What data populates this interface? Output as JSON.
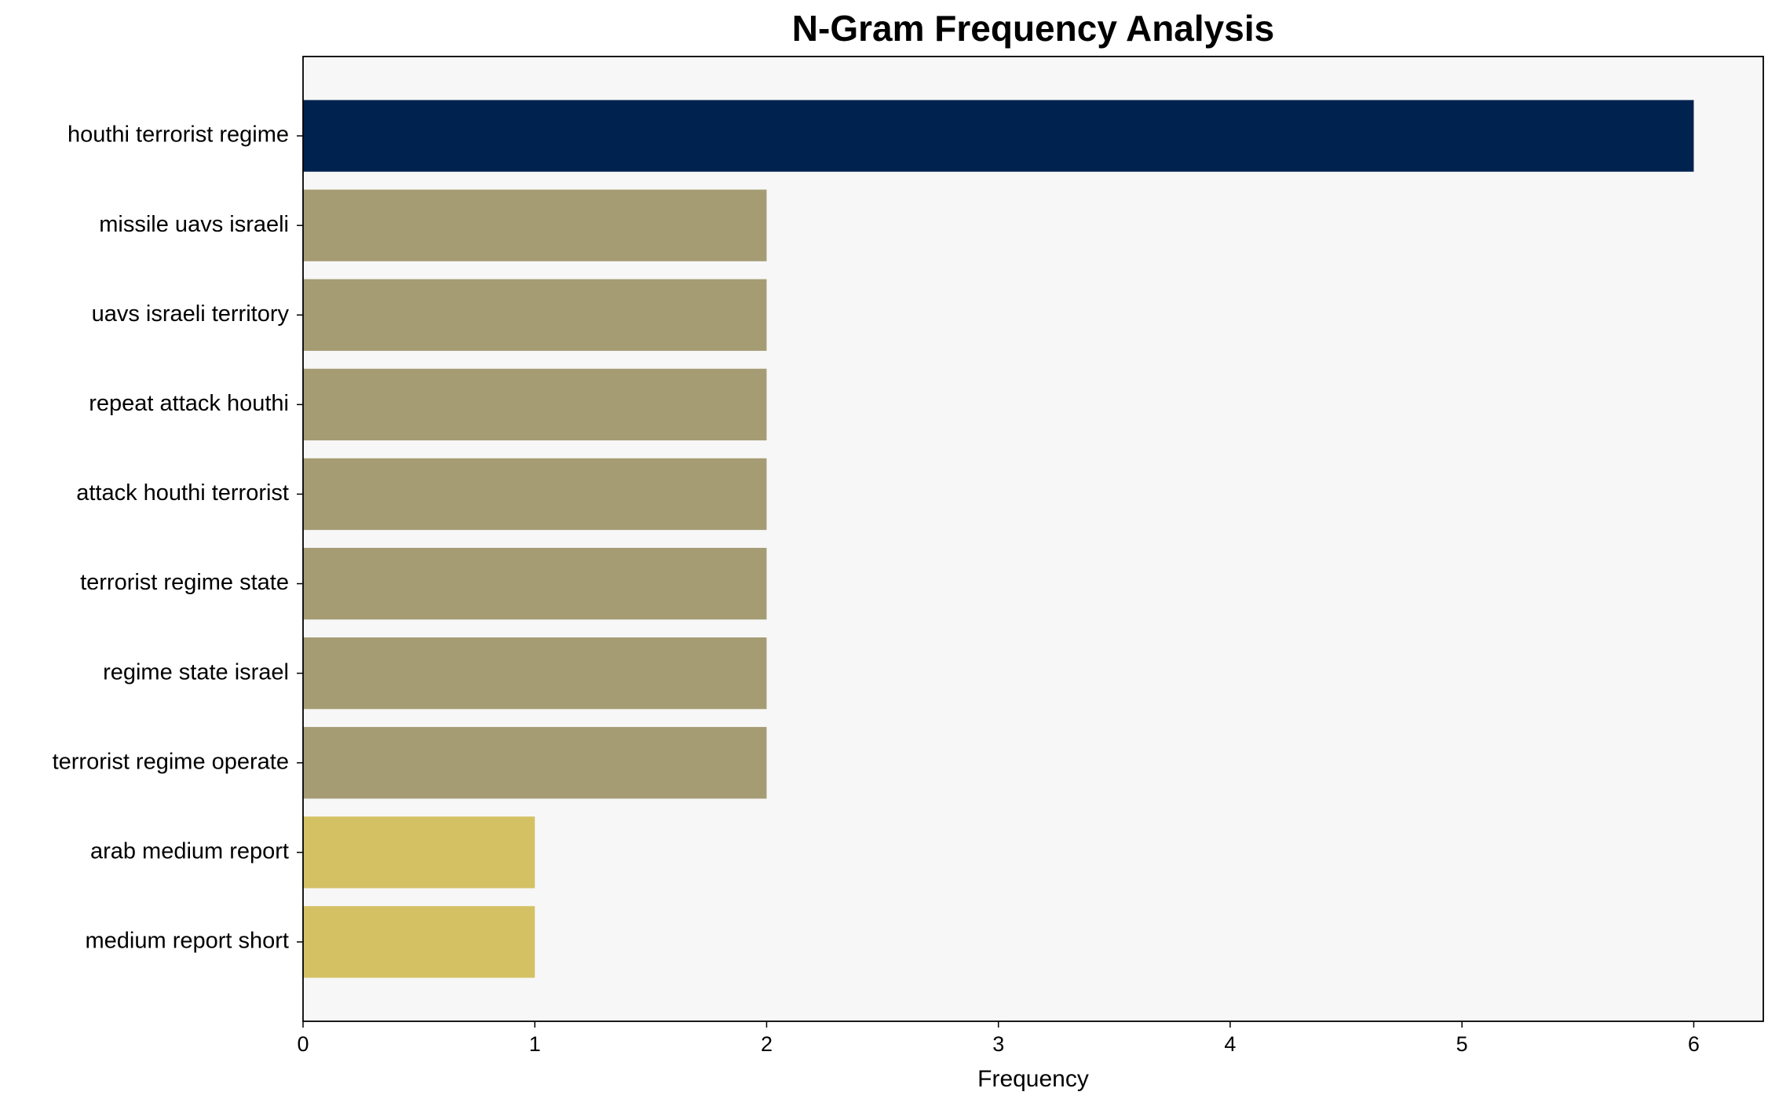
{
  "chart_data": {
    "type": "bar",
    "orientation": "horizontal",
    "title": "N-Gram Frequency Analysis",
    "xlabel": "Frequency",
    "categories": [
      "houthi terrorist regime",
      "missile uavs israeli",
      "uavs israeli territory",
      "repeat attack houthi",
      "attack houthi terrorist",
      "terrorist regime state",
      "regime state israel",
      "terrorist regime operate",
      "arab medium report",
      "medium report short"
    ],
    "values": [
      6,
      2,
      2,
      2,
      2,
      2,
      2,
      2,
      1,
      1
    ],
    "colors": [
      "#00224e",
      "#a59c74",
      "#a59c74",
      "#a59c74",
      "#a59c74",
      "#a59c74",
      "#a59c74",
      "#a59c74",
      "#d3c164",
      "#d3c164"
    ],
    "xlim": [
      0,
      6.3
    ],
    "xticks": [
      0,
      1,
      2,
      3,
      4,
      5,
      6
    ],
    "background": "#f7f7f7"
  }
}
